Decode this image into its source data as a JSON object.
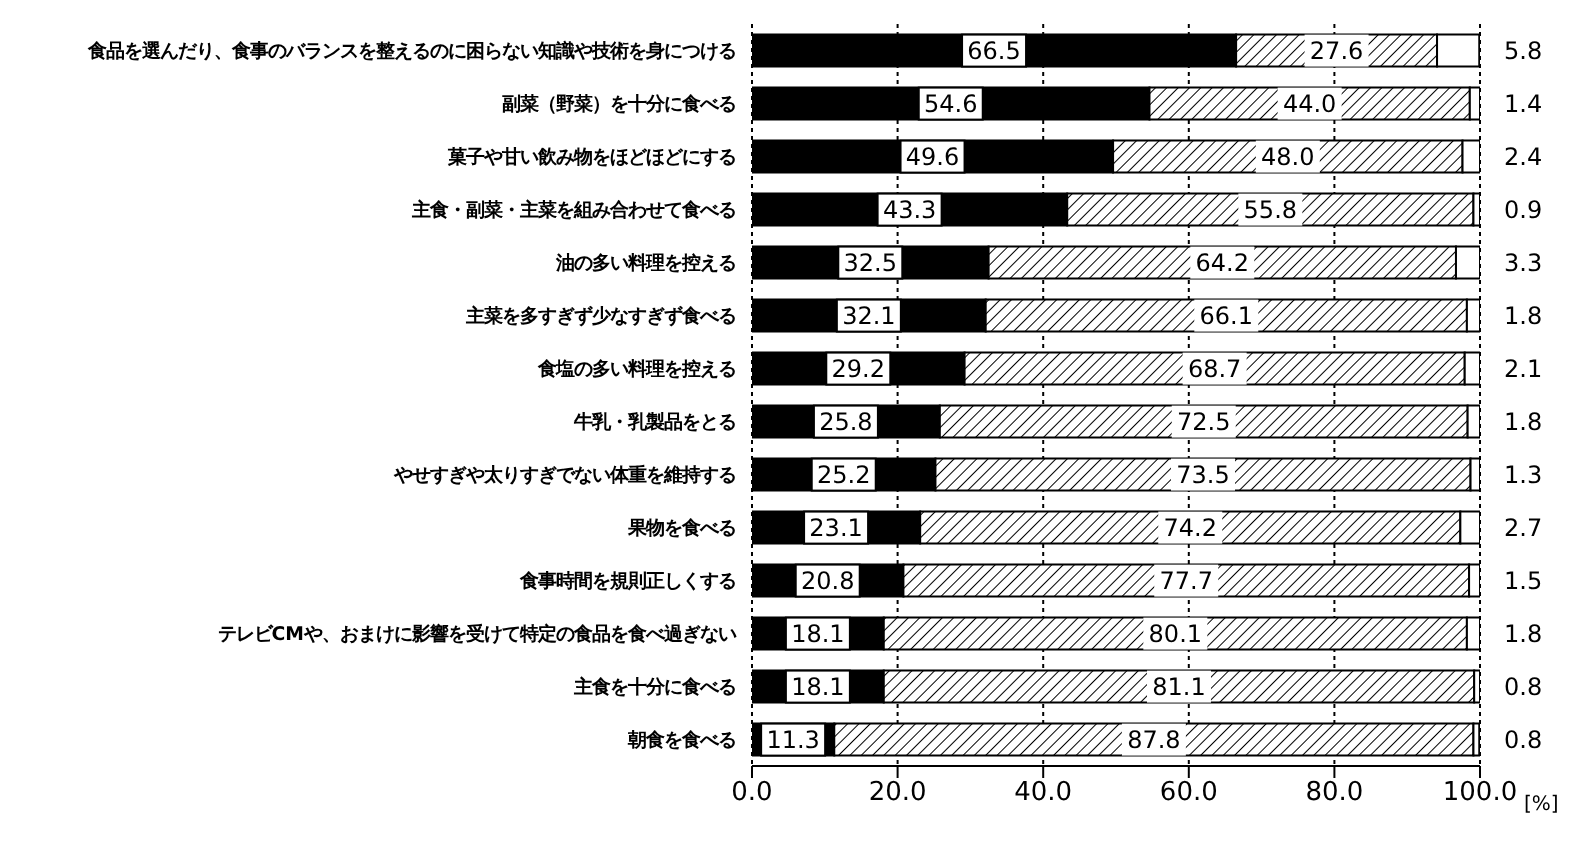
{
  "chart_data": {
    "type": "bar",
    "orientation": "horizontal",
    "stacked": true,
    "grid": "x",
    "line_style": "dotted",
    "xlabel": "[%]",
    "categories": [
      "食品を選んだり、食事のバランスを整えるのに困らない知識や技術を身につける",
      "副菜（野菜）を十分に食べる",
      "菓子や甘い飲み物をほどほどにする",
      "主食・副菜・主菜を組み合わせて食べる",
      "油の多い料理を控える",
      "主菜を多すぎず少なすぎず食べる",
      "食塩の多い料理を控える",
      "牛乳・乳製品をとる",
      "やせすぎや太りすぎでない体重を維持する",
      "果物を食べる",
      "食事時間を規則正しくする",
      "テレビCMや、おまけに影響を受けて特定の食品を食べ過ぎない",
      "主食を十分に食べる",
      "朝食を食べる"
    ],
    "series": [
      {
        "color": "#000000",
        "value_labels": [
          "66.5",
          "54.6",
          "49.6",
          "43.3",
          "32.5",
          "32.1",
          "29.2",
          "25.8",
          "25.2",
          "23.1",
          "20.8",
          "18.1",
          "18.1",
          "11.3"
        ],
        "values": [
          66.5,
          54.6,
          49.6,
          43.3,
          32.5,
          32.1,
          29.2,
          25.8,
          25.2,
          23.1,
          20.8,
          18.1,
          18.1,
          11.3
        ]
      },
      {
        "color": "#000000",
        "value_labels": [
          "27.6",
          "44.0",
          "48.0",
          "55.8",
          "64.2",
          "66.1",
          "68.7",
          "72.5",
          "73.5",
          "74.2",
          "77.7",
          "80.1",
          "81.1",
          "87.8"
        ],
        "values": [
          27.6,
          44.0,
          48.0,
          55.8,
          64.2,
          66.1,
          68.7,
          72.5,
          73.5,
          74.2,
          77.7,
          80.1,
          81.1,
          87.8
        ]
      },
      {
        "color": "#ffffff",
        "value_labels": [
          "5.8",
          "1.4",
          "2.4",
          "0.9",
          "3.3",
          "1.8",
          "2.1",
          "1.8",
          "1.3",
          "2.7",
          "1.5",
          "1.8",
          "0.8",
          "0.8"
        ],
        "values": [
          5.8,
          1.4,
          2.4,
          0.9,
          3.3,
          1.8,
          2.1,
          1.8,
          1.3,
          2.7,
          1.5,
          1.8,
          0.8,
          0.8
        ]
      }
    ],
    "xlim": [
      0,
      100
    ],
    "xticks": [
      {
        "value": 0,
        "label": "0.0"
      },
      {
        "value": 20,
        "label": "20.0"
      },
      {
        "value": 40,
        "label": "40.0"
      },
      {
        "value": 60,
        "label": "60.0"
      },
      {
        "value": 80,
        "label": "80.0"
      },
      {
        "value": 100,
        "label": "100.0"
      }
    ]
  }
}
